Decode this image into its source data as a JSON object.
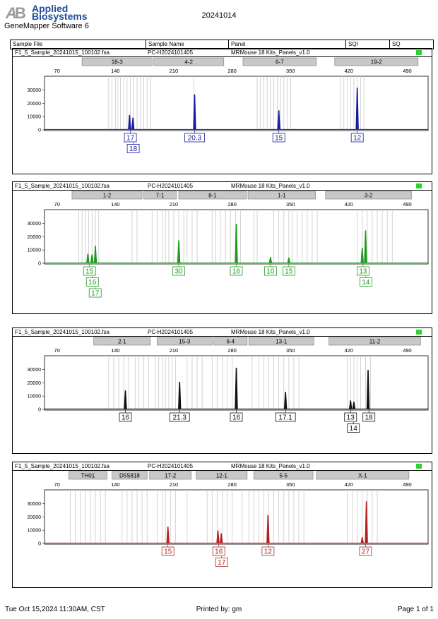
{
  "header": {
    "brand_line1": "Applied",
    "brand_line2": "Biosystems",
    "software": "GeneMapper Software 6",
    "run_date": "20241014",
    "columns": [
      "Sample File",
      "Sample Name",
      "Panel",
      "SQI",
      "SQ"
    ]
  },
  "footer": {
    "printed_at": "Tue Oct 15,2024 11:30AM, CST",
    "printed_by": "Printed by: gm",
    "page": "Page 1 of 1"
  },
  "chart_data": [
    {
      "type": "line",
      "sample_file": "F1_5_Sample_20241015_100102.fsa",
      "sample_name": "PC-H2024101405",
      "panel": "MRMouse 18 Kits_Panels_v1.0",
      "color": "#1a1aa0",
      "xlim": [
        55,
        515
      ],
      "xticks": [
        70,
        140,
        210,
        280,
        350,
        420,
        490
      ],
      "ylim": [
        0,
        35000
      ],
      "yticks": [
        0,
        10000,
        20000,
        30000
      ],
      "markers": [
        {
          "name": "18-3",
          "start": 100,
          "end": 184
        },
        {
          "name": "4-2",
          "start": 186,
          "end": 270
        },
        {
          "name": "6-7",
          "start": 293,
          "end": 381
        },
        {
          "name": "19-2",
          "start": 403,
          "end": 503
        }
      ],
      "bins": [
        132,
        136,
        140,
        143,
        146,
        150,
        154,
        158,
        162,
        166,
        170,
        174,
        178,
        182,
        234,
        310,
        314,
        318,
        322,
        326,
        330,
        334,
        338,
        342,
        346,
        350,
        410,
        414,
        418,
        422,
        426,
        430,
        434,
        438
      ],
      "peaks": [
        {
          "x": 157,
          "y": 11000
        },
        {
          "x": 161,
          "y": 9000
        },
        {
          "x": 235,
          "y": 26500
        },
        {
          "x": 336,
          "y": 14500
        },
        {
          "x": 430,
          "y": 31500
        }
      ],
      "alleles": [
        {
          "x": 158,
          "labels": [
            "17",
            "18"
          ]
        },
        {
          "x": 235,
          "labels": [
            "20.3"
          ]
        },
        {
          "x": 336,
          "labels": [
            "15"
          ]
        },
        {
          "x": 430,
          "labels": [
            "12"
          ]
        }
      ]
    },
    {
      "type": "line",
      "sample_file": "F1_5_Sample_20241015_100102.fsa",
      "sample_name": "PC-H2024101405",
      "panel": "MRMouse 18 Kits_Panels_v1.0",
      "color": "#1f9a1f",
      "xlim": [
        55,
        515
      ],
      "xticks": [
        70,
        140,
        210,
        280,
        350,
        420,
        490
      ],
      "ylim": [
        0,
        35000
      ],
      "yticks": [
        0,
        10000,
        20000,
        30000
      ],
      "markers": [
        {
          "name": "1-2",
          "start": 88,
          "end": 172
        },
        {
          "name": "7-1",
          "start": 174,
          "end": 213
        },
        {
          "name": "8-1",
          "start": 216,
          "end": 297
        },
        {
          "name": "1-1",
          "start": 299,
          "end": 380
        },
        {
          "name": "3-2",
          "start": 392,
          "end": 495
        }
      ],
      "bins": [
        96,
        100,
        104,
        108,
        112,
        116,
        120,
        160,
        166,
        184,
        190,
        196,
        200,
        204,
        210,
        216,
        222,
        226,
        232,
        238,
        256,
        260,
        266,
        272,
        278,
        284,
        290,
        306,
        310,
        330,
        336,
        342,
        348,
        352,
        358,
        364,
        370,
        376,
        382,
        430,
        436,
        442,
        448,
        454,
        460,
        466,
        472
      ],
      "peaks": [
        {
          "x": 107,
          "y": 7000
        },
        {
          "x": 112,
          "y": 6500
        },
        {
          "x": 116,
          "y": 13000
        },
        {
          "x": 216,
          "y": 17000
        },
        {
          "x": 285,
          "y": 29500
        },
        {
          "x": 326,
          "y": 4500
        },
        {
          "x": 348,
          "y": 4000
        },
        {
          "x": 436,
          "y": 11500
        },
        {
          "x": 440,
          "y": 24500
        }
      ],
      "alleles": [
        {
          "x": 109,
          "labels": [
            "15",
            "16",
            "17"
          ]
        },
        {
          "x": 216,
          "labels": [
            "30"
          ]
        },
        {
          "x": 285,
          "labels": [
            "16"
          ]
        },
        {
          "x": 326,
          "labels": [
            "10"
          ]
        },
        {
          "x": 348,
          "labels": [
            "15"
          ]
        },
        {
          "x": 437,
          "labels": [
            "13",
            "14"
          ]
        }
      ]
    },
    {
      "type": "line",
      "sample_file": "F1_5_Sample_20241015_100102.fsa",
      "sample_name": "PC-H2024101405",
      "panel": "MRMouse 18 Kits_Panels_v1.0",
      "color": "#111111",
      "xlim": [
        55,
        515
      ],
      "xticks": [
        70,
        140,
        210,
        280,
        350,
        420,
        490
      ],
      "ylim": [
        0,
        35000
      ],
      "yticks": [
        0,
        10000,
        20000,
        30000
      ],
      "markers": [
        {
          "name": "2-1",
          "start": 114,
          "end": 182
        },
        {
          "name": "15-3",
          "start": 190,
          "end": 256
        },
        {
          "name": "6-4",
          "start": 258,
          "end": 298
        },
        {
          "name": "13-1",
          "start": 300,
          "end": 378
        },
        {
          "name": "11-2",
          "start": 396,
          "end": 506
        }
      ],
      "bins": [
        132,
        138,
        144,
        150,
        156,
        164,
        168,
        174,
        180,
        188,
        192,
        196,
        200,
        204,
        208,
        212,
        226,
        232,
        238,
        244,
        256,
        262,
        268,
        274,
        280,
        304,
        312,
        318,
        324,
        330,
        336,
        342,
        348,
        354,
        360,
        418,
        422,
        426,
        430,
        434,
        440,
        446
      ],
      "peaks": [
        {
          "x": 152,
          "y": 14000
        },
        {
          "x": 217,
          "y": 20500
        },
        {
          "x": 285,
          "y": 31000
        },
        {
          "x": 344,
          "y": 13000
        },
        {
          "x": 422,
          "y": 6500
        },
        {
          "x": 426,
          "y": 5500
        },
        {
          "x": 443,
          "y": 29500
        }
      ],
      "alleles": [
        {
          "x": 152,
          "labels": [
            "16"
          ]
        },
        {
          "x": 217,
          "labels": [
            "21.3"
          ]
        },
        {
          "x": 285,
          "labels": [
            "16"
          ]
        },
        {
          "x": 344,
          "labels": [
            "17.1"
          ]
        },
        {
          "x": 422,
          "labels": [
            "13",
            "14"
          ]
        },
        {
          "x": 444,
          "labels": [
            "18"
          ]
        }
      ]
    },
    {
      "type": "line",
      "sample_file": "F1_5_Sample_20241015_100102.fsa",
      "sample_name": "PC-H2024101405",
      "panel": "MRMouse 18 Kits_Panels_v1.0",
      "color": "#b32222",
      "xlim": [
        55,
        515
      ],
      "xticks": [
        70,
        140,
        210,
        280,
        350,
        420,
        490
      ],
      "ylim": [
        0,
        35000
      ],
      "yticks": [
        0,
        10000,
        20000,
        30000
      ],
      "markers": [
        {
          "name": "TH01",
          "start": 84,
          "end": 130
        },
        {
          "name": "D5S818",
          "start": 136,
          "end": 178
        },
        {
          "name": "17-2",
          "start": 181,
          "end": 231
        },
        {
          "name": "12-1",
          "start": 237,
          "end": 298
        },
        {
          "name": "5-5",
          "start": 306,
          "end": 377
        },
        {
          "name": "X-1",
          "start": 381,
          "end": 492
        }
      ],
      "bins": [
        86,
        92,
        98,
        104,
        110,
        116,
        122,
        128,
        148,
        154,
        160,
        166,
        172,
        178,
        190,
        196,
        200,
        206,
        212,
        226,
        250,
        256,
        262,
        268,
        274,
        280,
        292,
        300,
        306,
        312,
        318,
        324,
        330,
        336,
        342,
        348,
        354,
        360,
        366,
        418,
        424,
        430,
        436,
        442,
        448,
        454
      ],
      "peaks": [
        {
          "x": 203,
          "y": 12500
        },
        {
          "x": 263,
          "y": 9500
        },
        {
          "x": 267,
          "y": 7500
        },
        {
          "x": 323,
          "y": 21000
        },
        {
          "x": 436,
          "y": 4500
        },
        {
          "x": 441,
          "y": 31500
        }
      ],
      "alleles": [
        {
          "x": 203,
          "labels": [
            "15"
          ]
        },
        {
          "x": 264,
          "labels": [
            "16",
            "17"
          ]
        },
        {
          "x": 323,
          "labels": [
            "12"
          ]
        },
        {
          "x": 440,
          "labels": [
            "27"
          ]
        }
      ]
    }
  ]
}
